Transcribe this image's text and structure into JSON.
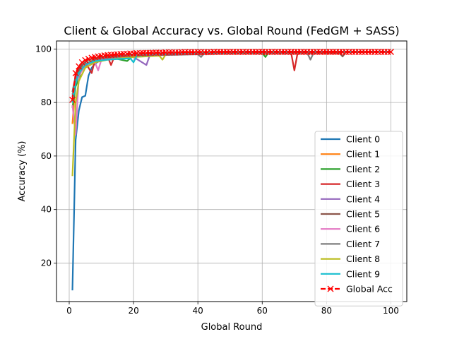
{
  "chart_data": {
    "type": "line",
    "title": "Client & Global Accuracy vs. Global Round (FedGM + SASS)",
    "xlabel": "Global Round",
    "ylabel": "Accuracy (%)",
    "xlim": [
      -3.95,
      104.95
    ],
    "ylim": [
      5.6,
      103.0
    ],
    "xticks": [
      0,
      20,
      40,
      60,
      80,
      100
    ],
    "yticks": [
      20,
      40,
      60,
      80,
      100
    ],
    "grid": true,
    "legend_position": "lower-right",
    "series": [
      {
        "name": "Client 0",
        "color": "#1f77b4",
        "values": [
          {
            "x": 1,
            "y": 9.8
          },
          {
            "x": 2,
            "y": 66
          },
          {
            "x": 3,
            "y": 77
          },
          {
            "x": 4,
            "y": 82
          },
          {
            "x": 5,
            "y": 82.5
          },
          {
            "x": 6,
            "y": 90
          },
          {
            "x": 7,
            "y": 93
          },
          {
            "x": 8,
            "y": 94.5
          },
          {
            "x": 10,
            "y": 96
          },
          {
            "x": 15,
            "y": 97
          },
          {
            "x": 20,
            "y": 98
          },
          {
            "x": 30,
            "y": 98.5
          },
          {
            "x": 50,
            "y": 99
          },
          {
            "x": 100,
            "y": 99
          }
        ]
      },
      {
        "name": "Client 1",
        "color": "#ff7f0e",
        "values": [
          {
            "x": 1,
            "y": 72
          },
          {
            "x": 2,
            "y": 88
          },
          {
            "x": 3,
            "y": 91
          },
          {
            "x": 4,
            "y": 94
          },
          {
            "x": 5,
            "y": 93
          },
          {
            "x": 6,
            "y": 95
          },
          {
            "x": 8,
            "y": 96
          },
          {
            "x": 12,
            "y": 97
          },
          {
            "x": 20,
            "y": 98
          },
          {
            "x": 40,
            "y": 98.7
          },
          {
            "x": 100,
            "y": 99
          }
        ]
      },
      {
        "name": "Client 2",
        "color": "#2ca02c",
        "values": [
          {
            "x": 1,
            "y": 78
          },
          {
            "x": 2,
            "y": 86
          },
          {
            "x": 3,
            "y": 89
          },
          {
            "x": 4,
            "y": 93
          },
          {
            "x": 6,
            "y": 95
          },
          {
            "x": 8,
            "y": 96
          },
          {
            "x": 12,
            "y": 97
          },
          {
            "x": 18,
            "y": 95.5
          },
          {
            "x": 20,
            "y": 97.5
          },
          {
            "x": 40,
            "y": 98.5
          },
          {
            "x": 60,
            "y": 98.5
          },
          {
            "x": 61,
            "y": 97
          },
          {
            "x": 62,
            "y": 98.8
          },
          {
            "x": 100,
            "y": 99
          }
        ]
      },
      {
        "name": "Client 3",
        "color": "#d62728",
        "values": [
          {
            "x": 1,
            "y": 82
          },
          {
            "x": 2,
            "y": 90
          },
          {
            "x": 3,
            "y": 93
          },
          {
            "x": 5,
            "y": 95
          },
          {
            "x": 7,
            "y": 91
          },
          {
            "x": 8,
            "y": 96
          },
          {
            "x": 12,
            "y": 97
          },
          {
            "x": 13,
            "y": 94
          },
          {
            "x": 14,
            "y": 97
          },
          {
            "x": 30,
            "y": 98.5
          },
          {
            "x": 69,
            "y": 98.5
          },
          {
            "x": 70,
            "y": 92
          },
          {
            "x": 71,
            "y": 98.5
          },
          {
            "x": 100,
            "y": 99
          }
        ]
      },
      {
        "name": "Client 4",
        "color": "#9467bd",
        "values": [
          {
            "x": 1,
            "y": 80
          },
          {
            "x": 2,
            "y": 88
          },
          {
            "x": 3,
            "y": 92
          },
          {
            "x": 6,
            "y": 95
          },
          {
            "x": 10,
            "y": 96
          },
          {
            "x": 20,
            "y": 97
          },
          {
            "x": 24,
            "y": 94
          },
          {
            "x": 25,
            "y": 97.5
          },
          {
            "x": 40,
            "y": 98.5
          },
          {
            "x": 100,
            "y": 99
          }
        ]
      },
      {
        "name": "Client 5",
        "color": "#8c564b",
        "values": [
          {
            "x": 1,
            "y": 84
          },
          {
            "x": 2,
            "y": 90
          },
          {
            "x": 4,
            "y": 94
          },
          {
            "x": 6,
            "y": 96
          },
          {
            "x": 10,
            "y": 97
          },
          {
            "x": 20,
            "y": 98
          },
          {
            "x": 84,
            "y": 98.5
          },
          {
            "x": 85,
            "y": 97.2
          },
          {
            "x": 86,
            "y": 98.8
          },
          {
            "x": 100,
            "y": 99
          }
        ]
      },
      {
        "name": "Client 6",
        "color": "#e377c2",
        "values": [
          {
            "x": 1,
            "y": 79
          },
          {
            "x": 2,
            "y": 68
          },
          {
            "x": 3,
            "y": 90
          },
          {
            "x": 5,
            "y": 94
          },
          {
            "x": 8,
            "y": 95
          },
          {
            "x": 9,
            "y": 92
          },
          {
            "x": 10,
            "y": 96
          },
          {
            "x": 20,
            "y": 97.5
          },
          {
            "x": 40,
            "y": 98.5
          },
          {
            "x": 100,
            "y": 99
          }
        ]
      },
      {
        "name": "Client 7",
        "color": "#7f7f7f",
        "values": [
          {
            "x": 1,
            "y": 83
          },
          {
            "x": 2,
            "y": 88
          },
          {
            "x": 4,
            "y": 93
          },
          {
            "x": 6,
            "y": 95
          },
          {
            "x": 10,
            "y": 96.5
          },
          {
            "x": 20,
            "y": 97.5
          },
          {
            "x": 40,
            "y": 98
          },
          {
            "x": 41,
            "y": 97
          },
          {
            "x": 42,
            "y": 98.5
          },
          {
            "x": 74,
            "y": 98.5
          },
          {
            "x": 75,
            "y": 96
          },
          {
            "x": 76,
            "y": 98.6
          },
          {
            "x": 100,
            "y": 99
          }
        ]
      },
      {
        "name": "Client 8",
        "color": "#bcbd22",
        "values": [
          {
            "x": 1,
            "y": 52.5
          },
          {
            "x": 2,
            "y": 80
          },
          {
            "x": 3,
            "y": 88
          },
          {
            "x": 5,
            "y": 93
          },
          {
            "x": 8,
            "y": 95
          },
          {
            "x": 12,
            "y": 96
          },
          {
            "x": 20,
            "y": 97
          },
          {
            "x": 28,
            "y": 97.5
          },
          {
            "x": 29,
            "y": 96
          },
          {
            "x": 30,
            "y": 98
          },
          {
            "x": 40,
            "y": 98.5
          },
          {
            "x": 100,
            "y": 99
          }
        ]
      },
      {
        "name": "Client 9",
        "color": "#17becf",
        "values": [
          {
            "x": 1,
            "y": 80
          },
          {
            "x": 2,
            "y": 87
          },
          {
            "x": 3,
            "y": 91
          },
          {
            "x": 5,
            "y": 94
          },
          {
            "x": 8,
            "y": 95.5
          },
          {
            "x": 12,
            "y": 96
          },
          {
            "x": 19,
            "y": 96.5
          },
          {
            "x": 20,
            "y": 95
          },
          {
            "x": 21,
            "y": 97.5
          },
          {
            "x": 40,
            "y": 98.5
          },
          {
            "x": 100,
            "y": 99
          }
        ]
      },
      {
        "name": "Global Acc",
        "color": "#ff0000",
        "marker": "x",
        "dashed": true,
        "values": [
          {
            "x": 1,
            "y": 81
          },
          {
            "x": 2,
            "y": 91
          },
          {
            "x": 3,
            "y": 93.5
          },
          {
            "x": 4,
            "y": 95
          },
          {
            "x": 5,
            "y": 95.8
          },
          {
            "x": 6,
            "y": 96.3
          },
          {
            "x": 7,
            "y": 96.7
          },
          {
            "x": 8,
            "y": 97
          },
          {
            "x": 9,
            "y": 97.2
          },
          {
            "x": 10,
            "y": 97.4
          },
          {
            "x": 11,
            "y": 97.6
          },
          {
            "x": 12,
            "y": 97.7
          },
          {
            "x": 13,
            "y": 97.8
          },
          {
            "x": 14,
            "y": 97.9
          },
          {
            "x": 15,
            "y": 98
          },
          {
            "x": 16,
            "y": 98.1
          },
          {
            "x": 17,
            "y": 98.2
          },
          {
            "x": 18,
            "y": 98.2
          },
          {
            "x": 19,
            "y": 98.3
          },
          {
            "x": 20,
            "y": 98.3
          },
          {
            "x": 21,
            "y": 98.4
          },
          {
            "x": 22,
            "y": 98.4
          },
          {
            "x": 23,
            "y": 98.5
          },
          {
            "x": 24,
            "y": 98.5
          },
          {
            "x": 25,
            "y": 98.5
          },
          {
            "x": 26,
            "y": 98.6
          },
          {
            "x": 27,
            "y": 98.6
          },
          {
            "x": 28,
            "y": 98.6
          },
          {
            "x": 29,
            "y": 98.6
          },
          {
            "x": 30,
            "y": 98.7
          },
          {
            "x": 31,
            "y": 98.7
          },
          {
            "x": 32,
            "y": 98.7
          },
          {
            "x": 33,
            "y": 98.7
          },
          {
            "x": 34,
            "y": 98.7
          },
          {
            "x": 35,
            "y": 98.8
          },
          {
            "x": 36,
            "y": 98.8
          },
          {
            "x": 37,
            "y": 98.8
          },
          {
            "x": 38,
            "y": 98.8
          },
          {
            "x": 39,
            "y": 98.8
          },
          {
            "x": 40,
            "y": 98.8
          },
          {
            "x": 41,
            "y": 98.8
          },
          {
            "x": 42,
            "y": 98.8
          },
          {
            "x": 43,
            "y": 98.8
          },
          {
            "x": 44,
            "y": 98.8
          },
          {
            "x": 45,
            "y": 98.9
          },
          {
            "x": 46,
            "y": 98.9
          },
          {
            "x": 47,
            "y": 98.9
          },
          {
            "x": 48,
            "y": 98.9
          },
          {
            "x": 49,
            "y": 98.9
          },
          {
            "x": 50,
            "y": 98.9
          },
          {
            "x": 51,
            "y": 98.9
          },
          {
            "x": 52,
            "y": 98.9
          },
          {
            "x": 53,
            "y": 98.9
          },
          {
            "x": 54,
            "y": 98.9
          },
          {
            "x": 55,
            "y": 98.9
          },
          {
            "x": 56,
            "y": 98.9
          },
          {
            "x": 57,
            "y": 98.9
          },
          {
            "x": 58,
            "y": 98.9
          },
          {
            "x": 59,
            "y": 98.9
          },
          {
            "x": 60,
            "y": 98.9
          },
          {
            "x": 61,
            "y": 98.9
          },
          {
            "x": 62,
            "y": 98.9
          },
          {
            "x": 63,
            "y": 98.9
          },
          {
            "x": 64,
            "y": 98.9
          },
          {
            "x": 65,
            "y": 98.9
          },
          {
            "x": 66,
            "y": 98.9
          },
          {
            "x": 67,
            "y": 98.9
          },
          {
            "x": 68,
            "y": 98.9
          },
          {
            "x": 69,
            "y": 98.9
          },
          {
            "x": 70,
            "y": 98.9
          },
          {
            "x": 71,
            "y": 98.9
          },
          {
            "x": 72,
            "y": 98.9
          },
          {
            "x": 73,
            "y": 98.9
          },
          {
            "x": 74,
            "y": 98.9
          },
          {
            "x": 75,
            "y": 98.9
          },
          {
            "x": 76,
            "y": 98.9
          },
          {
            "x": 77,
            "y": 98.9
          },
          {
            "x": 78,
            "y": 98.9
          },
          {
            "x": 79,
            "y": 98.9
          },
          {
            "x": 80,
            "y": 98.9
          },
          {
            "x": 81,
            "y": 98.9
          },
          {
            "x": 82,
            "y": 98.9
          },
          {
            "x": 83,
            "y": 98.9
          },
          {
            "x": 84,
            "y": 98.9
          },
          {
            "x": 85,
            "y": 98.9
          },
          {
            "x": 86,
            "y": 98.9
          },
          {
            "x": 87,
            "y": 98.9
          },
          {
            "x": 88,
            "y": 98.9
          },
          {
            "x": 89,
            "y": 98.9
          },
          {
            "x": 90,
            "y": 98.9
          },
          {
            "x": 91,
            "y": 98.9
          },
          {
            "x": 92,
            "y": 98.9
          },
          {
            "x": 93,
            "y": 98.9
          },
          {
            "x": 94,
            "y": 98.9
          },
          {
            "x": 95,
            "y": 98.9
          },
          {
            "x": 96,
            "y": 98.9
          },
          {
            "x": 97,
            "y": 98.9
          },
          {
            "x": 98,
            "y": 98.9
          },
          {
            "x": 99,
            "y": 98.9
          },
          {
            "x": 100,
            "y": 98.9
          }
        ]
      }
    ]
  }
}
